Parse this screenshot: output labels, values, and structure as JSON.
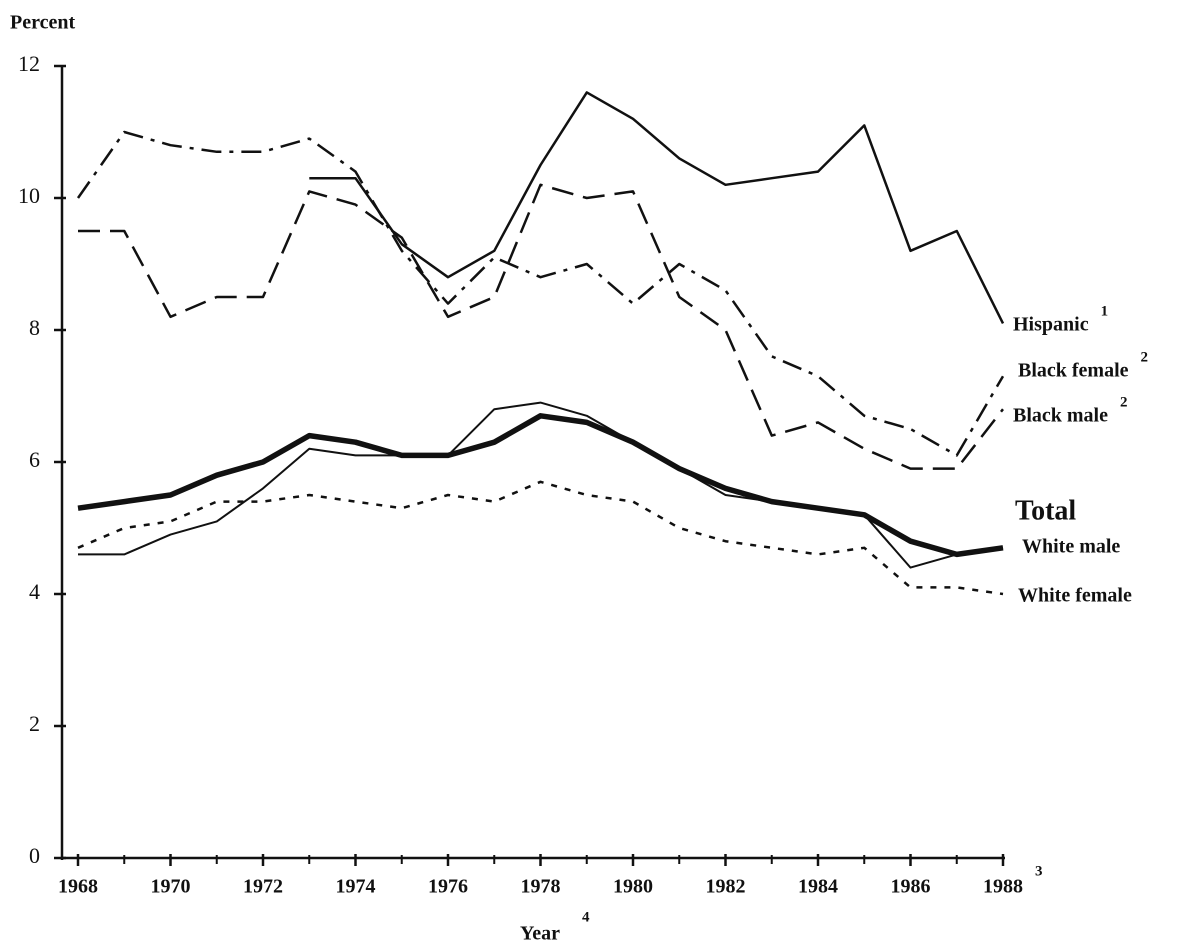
{
  "chart_data": {
    "type": "line",
    "ylabel": "Percent",
    "xlabel": "Year",
    "xlabel_footnote": "4",
    "x": [
      1968,
      1969,
      1970,
      1971,
      1972,
      1973,
      1974,
      1975,
      1976,
      1977,
      1978,
      1979,
      1980,
      1981,
      1982,
      1983,
      1984,
      1985,
      1986,
      1987,
      1988
    ],
    "xlim": [
      1968,
      1988
    ],
    "xticks": [
      1968,
      1970,
      1972,
      1974,
      1976,
      1978,
      1980,
      1982,
      1984,
      1986,
      1988
    ],
    "xminorticks": [
      1969,
      1971,
      1973,
      1975,
      1977,
      1979,
      1981,
      1983,
      1985,
      1987
    ],
    "annotations": [
      {
        "text": "3",
        "x": 1988
      }
    ],
    "ylim": [
      0,
      12
    ],
    "yticks": [
      0,
      2,
      4,
      6,
      8,
      10,
      12
    ],
    "series": [
      {
        "name": "Hispanic",
        "footnote": "1",
        "color": "#111",
        "style": "solid",
        "width": 2.5,
        "values": [
          null,
          null,
          null,
          null,
          null,
          10.3,
          10.3,
          9.3,
          8.8,
          9.2,
          10.5,
          11.6,
          11.2,
          10.6,
          10.2,
          10.3,
          10.4,
          11.1,
          9.2,
          9.5,
          8.1
        ]
      },
      {
        "name": "Black female",
        "footnote": "2",
        "color": "#111",
        "style": "dashdot",
        "width": 2.5,
        "values": [
          10.0,
          11.0,
          10.8,
          10.7,
          10.7,
          10.9,
          10.4,
          9.2,
          8.4,
          9.1,
          8.8,
          9.0,
          8.4,
          9.0,
          8.6,
          7.6,
          7.3,
          6.7,
          6.5,
          6.1,
          7.3
        ]
      },
      {
        "name": "Black male",
        "footnote": "2",
        "color": "#111",
        "style": "dashed",
        "width": 2.5,
        "values": [
          9.5,
          9.5,
          8.2,
          8.5,
          8.5,
          10.1,
          9.9,
          9.4,
          8.2,
          8.5,
          10.2,
          10.0,
          10.1,
          8.5,
          8.0,
          6.4,
          6.6,
          6.2,
          5.9,
          5.9,
          6.8
        ]
      },
      {
        "name": "Total",
        "color": "#111",
        "style": "solid",
        "width": 5.5,
        "values": [
          5.3,
          5.4,
          5.5,
          5.8,
          6.0,
          6.4,
          6.3,
          6.1,
          6.1,
          6.3,
          6.7,
          6.6,
          6.3,
          5.9,
          5.6,
          5.4,
          5.3,
          5.2,
          4.8,
          4.6,
          4.7
        ]
      },
      {
        "name": "White male",
        "color": "#111",
        "style": "solid",
        "width": 2,
        "values": [
          4.6,
          4.6,
          4.9,
          5.1,
          5.6,
          6.2,
          6.1,
          6.1,
          6.1,
          6.8,
          6.9,
          6.7,
          6.3,
          5.9,
          5.5,
          5.4,
          5.3,
          5.2,
          4.4,
          4.6,
          4.7
        ]
      },
      {
        "name": "White female",
        "color": "#111",
        "style": "dotted",
        "width": 2.5,
        "values": [
          4.7,
          5.0,
          5.1,
          5.4,
          5.4,
          5.5,
          5.4,
          5.3,
          5.5,
          5.4,
          5.7,
          5.5,
          5.4,
          5.0,
          4.8,
          4.7,
          4.6,
          4.7,
          4.1,
          4.1,
          4.0
        ]
      }
    ]
  }
}
